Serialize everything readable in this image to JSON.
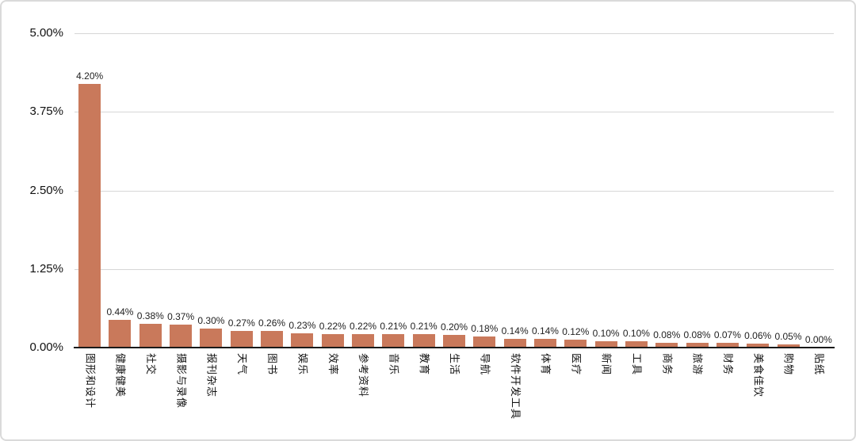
{
  "chart_data": {
    "type": "bar",
    "title": "",
    "xlabel": "",
    "ylabel": "",
    "categories": [
      "图形和设计",
      "健康健美",
      "社交",
      "摄影与录像",
      "报刊杂志",
      "天气",
      "图书",
      "娱乐",
      "效率",
      "参考资料",
      "音乐",
      "教育",
      "生活",
      "导航",
      "软件开发工具",
      "体育",
      "医疗",
      "新闻",
      "工具",
      "商务",
      "旅游",
      "财务",
      "美食佳饮",
      "购物",
      "贴纸"
    ],
    "values": [
      4.2,
      0.44,
      0.38,
      0.37,
      0.3,
      0.27,
      0.26,
      0.23,
      0.22,
      0.22,
      0.21,
      0.21,
      0.2,
      0.18,
      0.14,
      0.14,
      0.12,
      0.1,
      0.1,
      0.08,
      0.08,
      0.07,
      0.06,
      0.05,
      0.0
    ],
    "value_labels": [
      "4.20%",
      "0.44%",
      "0.38%",
      "0.37%",
      "0.30%",
      "0.27%",
      "0.26%",
      "0.23%",
      "0.22%",
      "0.22%",
      "0.21%",
      "0.21%",
      "0.20%",
      "0.18%",
      "0.14%",
      "0.14%",
      "0.12%",
      "0.10%",
      "0.10%",
      "0.08%",
      "0.08%",
      "0.07%",
      "0.06%",
      "0.05%",
      "0.00%"
    ],
    "ylim": [
      0,
      5
    ],
    "y_ticks": [
      {
        "label": "5.00%",
        "value": 5
      },
      {
        "label": "3.75%",
        "value": 3.75
      },
      {
        "label": "2.50%",
        "value": 2.5
      },
      {
        "label": "1.25%",
        "value": 1.25
      },
      {
        "label": "0.00%",
        "value": 0
      }
    ],
    "grid": true,
    "legend": false,
    "bar_color": "#C9795B",
    "gridline_color": "#D6D6D6",
    "axis_color": "#1A1A1A",
    "background_color": "#FFFFFF",
    "border_color": "#DADADA"
  }
}
